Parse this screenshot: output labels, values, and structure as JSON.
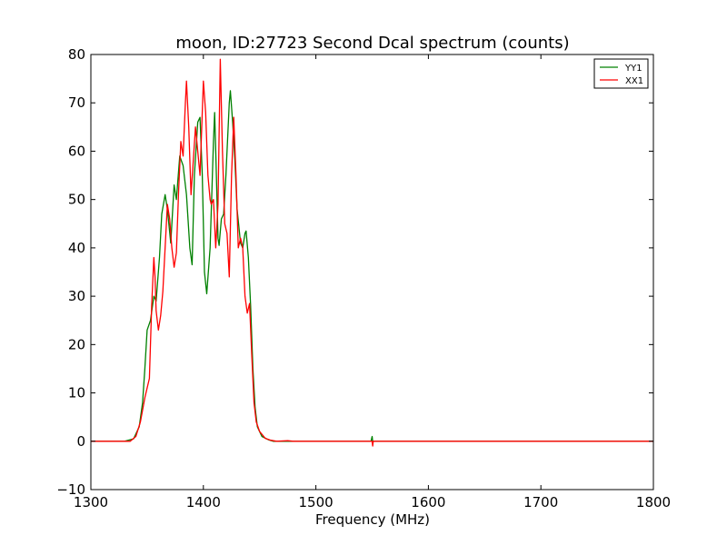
{
  "chart_data": {
    "type": "line",
    "title": "moon, ID:27723 Second Dcal spectrum (counts)",
    "xlabel": "Frequency (MHz)",
    "ylabel": "",
    "xlim": [
      1300,
      1800
    ],
    "ylim": [
      -10,
      80
    ],
    "xticks": [
      1300,
      1400,
      1500,
      1600,
      1700,
      1800
    ],
    "yticks": [
      -10,
      0,
      10,
      20,
      30,
      40,
      50,
      60,
      70,
      80
    ],
    "xtick_labels": [
      "1300",
      "1400",
      "1500",
      "1600",
      "1700",
      "1800"
    ],
    "ytick_labels": [
      "−10",
      "0",
      "10",
      "20",
      "30",
      "40",
      "50",
      "60",
      "70",
      "80"
    ],
    "legend_position": "top-right",
    "grid": false,
    "series": [
      {
        "name": "YY1",
        "color": "#008000",
        "x": [
          1300,
          1330,
          1338,
          1343,
          1346,
          1348,
          1350,
          1353,
          1356,
          1358,
          1361,
          1363,
          1366,
          1368,
          1371,
          1374,
          1376,
          1379,
          1382,
          1385,
          1388,
          1390,
          1392,
          1395,
          1397,
          1399,
          1401,
          1403,
          1406,
          1409,
          1410,
          1411,
          1413,
          1414,
          1416,
          1418,
          1420,
          1423,
          1424,
          1426,
          1428,
          1430,
          1433,
          1435,
          1437,
          1438,
          1440,
          1442,
          1444,
          1446,
          1448,
          1452,
          1458,
          1462,
          1470,
          1549,
          1550,
          1550.5,
          1551,
          1800
        ],
        "y": [
          0,
          0,
          0.5,
          3,
          8,
          15,
          23,
          25,
          30,
          29,
          38,
          47,
          51,
          48,
          41,
          53,
          50,
          59,
          57,
          51,
          40,
          36.5,
          55,
          66,
          67,
          55,
          35,
          30.5,
          40,
          62,
          68,
          60,
          42,
          40.5,
          46,
          47,
          55,
          70,
          72.5,
          66,
          58,
          48,
          41,
          40,
          43,
          43.5,
          38,
          28,
          15,
          7,
          3,
          1,
          0.3,
          0,
          0,
          0,
          1,
          0,
          0,
          0
        ]
      },
      {
        "name": "XX1",
        "color": "#ff0000",
        "x": [
          1300,
          1335,
          1340,
          1344,
          1348,
          1350,
          1352,
          1354,
          1356,
          1357,
          1358,
          1360,
          1362,
          1364,
          1366,
          1368,
          1370,
          1372,
          1374,
          1376,
          1378,
          1380,
          1382,
          1384,
          1385,
          1387,
          1389,
          1391,
          1393,
          1395,
          1397,
          1400,
          1402,
          1404,
          1406,
          1407,
          1409,
          1411,
          1413,
          1415,
          1417,
          1419,
          1421,
          1423,
          1425,
          1427,
          1429,
          1431,
          1433,
          1435,
          1437,
          1439,
          1441,
          1443,
          1445,
          1447,
          1450,
          1455,
          1460,
          1465,
          1475,
          1480,
          1549,
          1550,
          1550.5,
          1551,
          1800
        ],
        "y": [
          0,
          0,
          1,
          4,
          9,
          11,
          13,
          28,
          38,
          34,
          27,
          23,
          26,
          31,
          40,
          49,
          46,
          40,
          36,
          39,
          52,
          62,
          59,
          70,
          74.5,
          65,
          51,
          58,
          65,
          60,
          55,
          74.5,
          68,
          55,
          50,
          49,
          50,
          40,
          49,
          79,
          60,
          45,
          43,
          34,
          55,
          67,
          55,
          40,
          42,
          40,
          30,
          26.5,
          28.5,
          18,
          8,
          4,
          2,
          0.6,
          0.2,
          0,
          0.1,
          0,
          0,
          0,
          -1,
          0,
          0
        ]
      }
    ]
  }
}
